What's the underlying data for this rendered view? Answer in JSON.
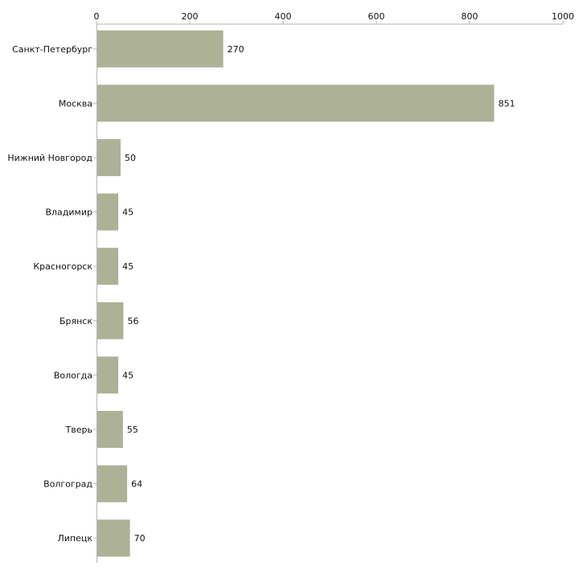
{
  "chart_data": {
    "type": "bar",
    "orientation": "horizontal",
    "title": "",
    "xlabel": "",
    "ylabel": "",
    "xlim": [
      0,
      1000
    ],
    "x_ticks": [
      0,
      200,
      400,
      600,
      800,
      1000
    ],
    "grid": false,
    "categories": [
      "Санкт-Петербург",
      "Москва",
      "Нижний Новгород",
      "Владимир",
      "Красногорск",
      "Брянск",
      "Вологда",
      "Тверь",
      "Волгоград",
      "Липецк"
    ],
    "values": [
      270,
      851,
      50,
      45,
      45,
      56,
      45,
      55,
      64,
      70
    ],
    "data_labels": [
      "270",
      "851",
      "50",
      "45",
      "45",
      "56",
      "45",
      "55",
      "64",
      "70"
    ],
    "tick_labels": [
      "0",
      "200",
      "400",
      "600",
      "800",
      "1000"
    ],
    "colors": {
      "bar": "#adb297",
      "axis": "#b5b5b5",
      "text": "#111111"
    }
  }
}
